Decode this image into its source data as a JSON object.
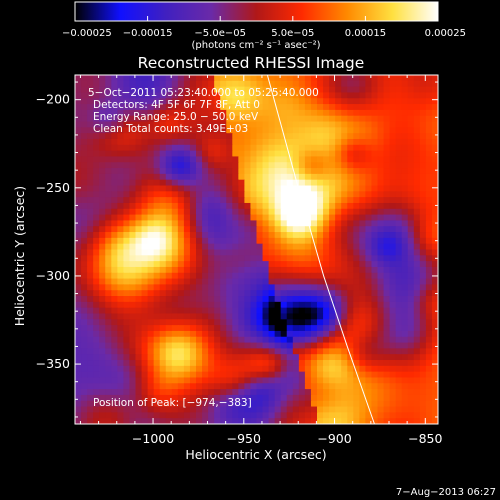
{
  "chart_data": {
    "type": "heatmap",
    "title": "Reconstructed RHESSI Image",
    "xlabel": "Heliocentric X (arcsec)",
    "ylabel": "Heliocentric Y (arcsec)",
    "xlim": [
      -1043,
      -843
    ],
    "ylim": [
      -384,
      -186
    ],
    "xticks": [
      -1000,
      -950,
      -900,
      -850
    ],
    "xtick_labels": [
      "−1000",
      "−950",
      "−900",
      "−850"
    ],
    "yticks": [
      -200,
      -250,
      -300,
      -350
    ],
    "ytick_labels": [
      "−200",
      "−250",
      "−300",
      "−350"
    ],
    "colorbar": {
      "range": [
        -0.00025,
        0.00025
      ],
      "ticks": [
        -0.00025,
        -0.00015,
        -5e-05,
        5e-05,
        0.00015,
        0.00025
      ],
      "tick_labels": [
        "−0.00025",
        "−0.00015",
        "−5.0e−05",
        "5.0e−05",
        "0.00015",
        "0.00025"
      ],
      "units": "(photons cm⁻² s⁻¹ asec⁻²)"
    },
    "annotations": [
      "5−Oct−2011 05:23:40.000 to 05:25:40.000",
      "Detectors: 4F 5F 6F 7F 8F, Att 0",
      "Energy Range: 25.0 − 50.0 keV",
      "Clean     Total counts: 3.49E+03"
    ],
    "peak_label": "Position of Peak: [−974,−383]",
    "peak_position": [
      -974,
      -383
    ],
    "limb": [
      [
        -937,
        -186
      ],
      [
        -920,
        -250
      ],
      [
        -906,
        -300
      ],
      [
        -893,
        -340
      ],
      [
        -878,
        -384
      ]
    ],
    "colormap": [
      "#000000",
      "#1010ff",
      "#4020c0",
      "#6a2aa8",
      "#b01818",
      "#ff2a00",
      "#ff8a00",
      "#ffe040",
      "#ffffff"
    ]
  },
  "footer": {
    "date_stamp": "7−Aug−2013 06:27"
  }
}
